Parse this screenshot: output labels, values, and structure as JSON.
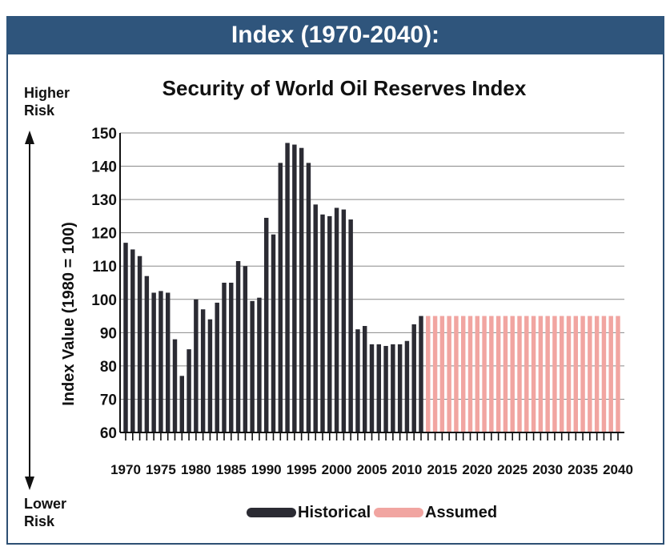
{
  "banner_title": "Index (1970-2040):",
  "side": {
    "higher": "Higher",
    "higher_risk": "Risk",
    "lower": "Lower",
    "lower_risk": "Risk"
  },
  "colors": {
    "historical": "#2b2b33",
    "assumed": "#f1a5a1",
    "banner": "#2f557c",
    "grid": "#8a8a8a"
  },
  "chart_data": {
    "type": "bar",
    "title": "Security of World Oil Reserves Index",
    "ylabel": "Index Value (1980 = 100)",
    "xlabel": "",
    "ylim": [
      60,
      150
    ],
    "yticks": [
      60,
      70,
      80,
      90,
      100,
      110,
      120,
      130,
      140,
      150
    ],
    "xticks": [
      1970,
      1975,
      1980,
      1985,
      1990,
      1995,
      2000,
      2005,
      2010,
      2015,
      2020,
      2025,
      2030,
      2035,
      2040
    ],
    "grid": true,
    "legend_position": "bottom-center",
    "series": [
      {
        "name": "Historical",
        "x": [
          1970,
          1971,
          1972,
          1973,
          1974,
          1975,
          1976,
          1977,
          1978,
          1979,
          1980,
          1981,
          1982,
          1983,
          1984,
          1985,
          1986,
          1987,
          1988,
          1989,
          1990,
          1991,
          1992,
          1993,
          1994,
          1995,
          1996,
          1997,
          1998,
          1999,
          2000,
          2001,
          2002,
          2003,
          2004,
          2005,
          2006,
          2007,
          2008,
          2009,
          2010,
          2011,
          2012
        ],
        "values": [
          117,
          115,
          113,
          107,
          102,
          102.5,
          102,
          88,
          77,
          85,
          100,
          97,
          94,
          99,
          105,
          105,
          111.5,
          110,
          99.5,
          100.5,
          124.5,
          119.5,
          141,
          147,
          146.5,
          145.5,
          141,
          128.5,
          125.5,
          125,
          127.5,
          127,
          124,
          91,
          92,
          86.5,
          86.5,
          86,
          86.5,
          86.5,
          87.5,
          92.5,
          95
        ]
      },
      {
        "name": "Assumed",
        "x": [
          2013,
          2014,
          2015,
          2016,
          2017,
          2018,
          2019,
          2020,
          2021,
          2022,
          2023,
          2024,
          2025,
          2026,
          2027,
          2028,
          2029,
          2030,
          2031,
          2032,
          2033,
          2034,
          2035,
          2036,
          2037,
          2038,
          2039,
          2040
        ],
        "values": [
          95,
          95,
          95,
          95,
          95,
          95,
          95,
          95,
          95,
          95,
          95,
          95,
          95,
          95,
          95,
          95,
          95,
          95,
          95,
          95,
          95,
          95,
          95,
          95,
          95,
          95,
          95,
          95
        ]
      }
    ]
  }
}
